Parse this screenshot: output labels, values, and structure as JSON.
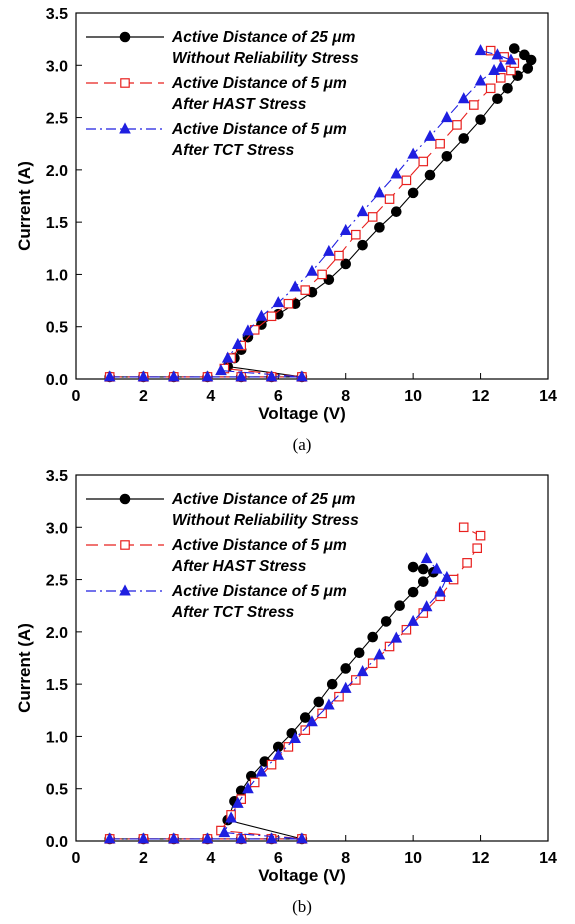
{
  "chart_data": [
    {
      "type": "line",
      "caption": "(a)",
      "xlabel": "Voltage (V)",
      "ylabel": "Current (A)",
      "xlim": [
        0,
        14
      ],
      "ylim": [
        0,
        3.5
      ],
      "xticks": [
        "0",
        "2",
        "4",
        "6",
        "8",
        "10",
        "12",
        "14"
      ],
      "yticks": [
        "0.0",
        "0.5",
        "1.0",
        "1.5",
        "2.0",
        "2.5",
        "3.0",
        "3.5"
      ],
      "grid": false,
      "legend_position": "top-left",
      "series": [
        {
          "name": [
            "Active Distance of 25 μm",
            "Without Reliability Stress"
          ],
          "color": "#000000",
          "marker": "circle-filled",
          "line": "solid",
          "x": [
            1.0,
            2.0,
            2.9,
            3.9,
            4.9,
            5.8,
            6.7,
            4.5,
            4.7,
            4.9,
            5.1,
            5.5,
            6.0,
            6.5,
            7.0,
            7.5,
            8.0,
            8.5,
            9.0,
            9.5,
            10.0,
            10.5,
            11.0,
            11.5,
            12.0,
            12.5,
            12.8,
            13.1,
            13.4,
            13.5,
            13.3,
            13.0
          ],
          "y": [
            0.02,
            0.02,
            0.02,
            0.02,
            0.02,
            0.02,
            0.02,
            0.12,
            0.2,
            0.28,
            0.4,
            0.52,
            0.62,
            0.72,
            0.83,
            0.95,
            1.1,
            1.28,
            1.45,
            1.6,
            1.78,
            1.95,
            2.13,
            2.3,
            2.48,
            2.68,
            2.78,
            2.9,
            2.97,
            3.05,
            3.1,
            3.16
          ]
        },
        {
          "name": [
            "Active Distance of 5 μm",
            "After HAST Stress"
          ],
          "color": "#e8201e",
          "marker": "square-open",
          "line": "dashed",
          "x": [
            1.0,
            2.0,
            2.9,
            3.9,
            4.9,
            5.8,
            6.7,
            4.4,
            4.6,
            4.9,
            5.3,
            5.8,
            6.3,
            6.8,
            7.3,
            7.8,
            8.3,
            8.8,
            9.3,
            9.8,
            10.3,
            10.8,
            11.3,
            11.8,
            12.3,
            12.6,
            12.9,
            13.0,
            12.7,
            12.3
          ],
          "y": [
            0.02,
            0.02,
            0.02,
            0.02,
            0.02,
            0.02,
            0.02,
            0.1,
            0.2,
            0.32,
            0.47,
            0.6,
            0.72,
            0.85,
            1.0,
            1.18,
            1.38,
            1.55,
            1.72,
            1.9,
            2.08,
            2.25,
            2.43,
            2.62,
            2.78,
            2.88,
            2.95,
            3.02,
            3.08,
            3.14
          ]
        },
        {
          "name": [
            "Active Distance of 5 μm",
            "After TCT Stress"
          ],
          "color": "#1f1fe0",
          "marker": "triangle-filled",
          "line": "dashdot",
          "x": [
            1.0,
            2.0,
            2.9,
            3.9,
            4.9,
            5.8,
            6.7,
            4.3,
            4.5,
            4.8,
            5.1,
            5.5,
            6.0,
            6.5,
            7.0,
            7.5,
            8.0,
            8.5,
            9.0,
            9.5,
            10.0,
            10.5,
            11.0,
            11.5,
            12.0,
            12.4,
            12.6,
            12.9,
            12.5,
            12.0
          ],
          "y": [
            0.02,
            0.02,
            0.02,
            0.02,
            0.02,
            0.02,
            0.02,
            0.08,
            0.2,
            0.33,
            0.46,
            0.6,
            0.73,
            0.88,
            1.03,
            1.22,
            1.42,
            1.6,
            1.78,
            1.96,
            2.15,
            2.32,
            2.5,
            2.68,
            2.85,
            2.95,
            2.98,
            3.05,
            3.1,
            3.14
          ]
        }
      ]
    },
    {
      "type": "line",
      "caption": "(b)",
      "xlabel": "Voltage (V)",
      "ylabel": "Current (A)",
      "xlim": [
        0,
        14
      ],
      "ylim": [
        0,
        3.5
      ],
      "xticks": [
        "0",
        "2",
        "4",
        "6",
        "8",
        "10",
        "12",
        "14"
      ],
      "yticks": [
        "0.0",
        "0.5",
        "1.0",
        "1.5",
        "2.0",
        "2.5",
        "3.0",
        "3.5"
      ],
      "grid": false,
      "legend_position": "top-left",
      "series": [
        {
          "name": [
            "Active Distance of 25 μm",
            "Without Reliability Stress"
          ],
          "color": "#000000",
          "marker": "circle-filled",
          "line": "solid",
          "x": [
            1.0,
            2.0,
            2.9,
            3.9,
            4.9,
            5.8,
            6.7,
            4.5,
            4.7,
            4.9,
            5.2,
            5.6,
            6.0,
            6.4,
            6.8,
            7.2,
            7.6,
            8.0,
            8.4,
            8.8,
            9.2,
            9.6,
            10.0,
            10.3,
            10.6,
            10.3,
            10.0
          ],
          "y": [
            0.02,
            0.02,
            0.02,
            0.02,
            0.02,
            0.02,
            0.02,
            0.2,
            0.38,
            0.48,
            0.62,
            0.76,
            0.9,
            1.03,
            1.18,
            1.33,
            1.5,
            1.65,
            1.8,
            1.95,
            2.1,
            2.25,
            2.38,
            2.48,
            2.57,
            2.6,
            2.62
          ]
        },
        {
          "name": [
            "Active Distance of 5 μm",
            "After HAST Stress"
          ],
          "color": "#e8201e",
          "marker": "square-open",
          "line": "dashed",
          "x": [
            1.0,
            2.0,
            2.9,
            3.9,
            4.9,
            5.8,
            6.7,
            4.3,
            4.6,
            4.9,
            5.3,
            5.8,
            6.3,
            6.8,
            7.3,
            7.8,
            8.3,
            8.8,
            9.3,
            9.8,
            10.3,
            10.8,
            11.2,
            11.6,
            11.9,
            12.0,
            11.5
          ],
          "y": [
            0.02,
            0.02,
            0.02,
            0.02,
            0.02,
            0.02,
            0.02,
            0.1,
            0.25,
            0.4,
            0.56,
            0.73,
            0.9,
            1.06,
            1.22,
            1.38,
            1.54,
            1.7,
            1.86,
            2.02,
            2.18,
            2.34,
            2.5,
            2.66,
            2.8,
            2.92,
            3.0
          ]
        },
        {
          "name": [
            "Active Distance of 5 μm",
            "After TCT Stress"
          ],
          "color": "#1f1fe0",
          "marker": "triangle-filled",
          "line": "dashdot",
          "x": [
            1.0,
            2.0,
            2.9,
            3.9,
            4.9,
            5.8,
            6.7,
            4.4,
            4.6,
            4.8,
            5.1,
            5.5,
            6.0,
            6.5,
            7.0,
            7.5,
            8.0,
            8.5,
            9.0,
            9.5,
            10.0,
            10.4,
            10.8,
            11.0,
            10.7,
            10.4
          ],
          "y": [
            0.02,
            0.02,
            0.02,
            0.02,
            0.02,
            0.02,
            0.02,
            0.08,
            0.22,
            0.36,
            0.5,
            0.66,
            0.82,
            0.98,
            1.14,
            1.3,
            1.46,
            1.62,
            1.78,
            1.94,
            2.1,
            2.24,
            2.38,
            2.52,
            2.6,
            2.7
          ]
        }
      ]
    }
  ]
}
